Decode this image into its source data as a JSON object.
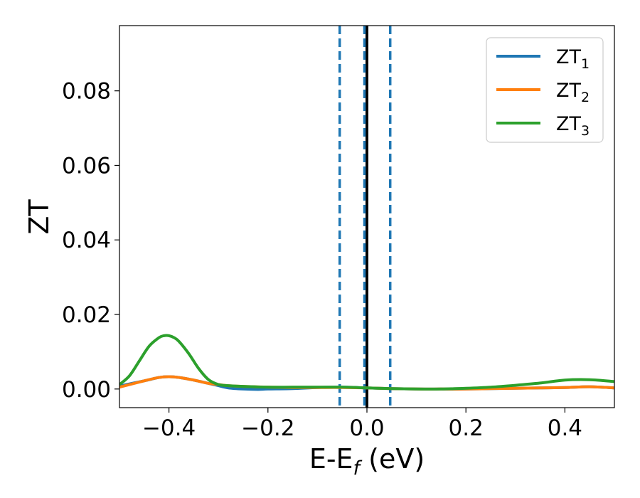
{
  "chart_data": {
    "type": "line",
    "xlabel": {
      "main": "E-E",
      "sub": "f",
      "unit": " (eV)"
    },
    "ylabel": "ZT",
    "xlim": [
      -0.5,
      0.5
    ],
    "ylim": [
      -0.005,
      0.0975
    ],
    "x_ticks": [
      {
        "value": -0.4,
        "label": "−0.4"
      },
      {
        "value": -0.2,
        "label": "−0.2"
      },
      {
        "value": 0.0,
        "label": "0.0"
      },
      {
        "value": 0.2,
        "label": "0.2"
      },
      {
        "value": 0.4,
        "label": "0.4"
      }
    ],
    "y_ticks": [
      {
        "value": 0.0,
        "label": "0.00"
      },
      {
        "value": 0.02,
        "label": "0.02"
      },
      {
        "value": 0.04,
        "label": "0.04"
      },
      {
        "value": 0.06,
        "label": "0.06"
      },
      {
        "value": 0.08,
        "label": "0.08"
      }
    ],
    "grid": false,
    "legend": {
      "placement": "top-right"
    },
    "vertical_lines": [
      {
        "x": 0.0,
        "style": "solid",
        "color": "#000000"
      },
      {
        "x": -0.055,
        "style": "dashed",
        "color": "#1f77b4"
      },
      {
        "x": -0.005,
        "style": "dashed",
        "color": "#1f77b4"
      },
      {
        "x": 0.047,
        "style": "dashed",
        "color": "#1f77b4"
      }
    ],
    "series": [
      {
        "name": {
          "main": "ZT",
          "sub": "1"
        },
        "color": "#1f77b4",
        "x": [
          -0.5,
          -0.45,
          -0.42,
          -0.4,
          -0.38,
          -0.35,
          -0.32,
          -0.3,
          -0.28,
          -0.25,
          -0.22,
          -0.2,
          -0.15,
          -0.1,
          -0.05,
          0.0,
          0.05,
          0.1,
          0.15,
          0.2,
          0.25,
          0.3,
          0.35,
          0.4,
          0.45,
          0.5
        ],
        "y": [
          0.0008,
          0.0022,
          0.0031,
          0.0033,
          0.0031,
          0.0024,
          0.0015,
          0.0009,
          0.0003,
          0.0,
          -0.0001,
          0.0,
          0.0001,
          0.0004,
          0.0005,
          0.0003,
          0.0001,
          0.0,
          0.0,
          0.0,
          0.0001,
          0.0002,
          0.0003,
          0.0004,
          0.0006,
          0.0003
        ]
      },
      {
        "name": {
          "main": "ZT",
          "sub": "2"
        },
        "color": "#ff7f0e",
        "x": [
          -0.5,
          -0.45,
          -0.42,
          -0.4,
          -0.38,
          -0.35,
          -0.32,
          -0.3,
          -0.28,
          -0.25,
          -0.2,
          -0.15,
          -0.1,
          -0.05,
          0.0,
          0.05,
          0.1,
          0.15,
          0.2,
          0.25,
          0.3,
          0.35,
          0.4,
          0.45,
          0.5
        ],
        "y": [
          0.0005,
          0.0022,
          0.0031,
          0.0033,
          0.0031,
          0.0024,
          0.0015,
          0.0012,
          0.0009,
          0.0007,
          0.0005,
          0.0004,
          0.0004,
          0.0004,
          0.0003,
          0.0001,
          0.0,
          0.0,
          0.0,
          0.0001,
          0.0002,
          0.0003,
          0.0004,
          0.0006,
          0.0003
        ]
      },
      {
        "name": {
          "main": "ZT",
          "sub": "3"
        },
        "color": "#2ca02c",
        "x": [
          -0.5,
          -0.48,
          -0.46,
          -0.44,
          -0.42,
          -0.41,
          -0.4,
          -0.39,
          -0.38,
          -0.36,
          -0.34,
          -0.32,
          -0.3,
          -0.28,
          -0.25,
          -0.2,
          -0.15,
          -0.1,
          -0.05,
          0.0,
          0.05,
          0.1,
          0.15,
          0.2,
          0.25,
          0.3,
          0.35,
          0.4,
          0.45,
          0.5
        ],
        "y": [
          0.0012,
          0.0035,
          0.0075,
          0.0115,
          0.0138,
          0.0143,
          0.0143,
          0.0138,
          0.0128,
          0.0095,
          0.0055,
          0.0025,
          0.0012,
          0.0009,
          0.0007,
          0.0005,
          0.0005,
          0.0005,
          0.0005,
          0.0003,
          0.0001,
          0.0,
          0.0,
          0.0002,
          0.0005,
          0.001,
          0.0016,
          0.0024,
          0.0025,
          0.002
        ]
      }
    ]
  }
}
